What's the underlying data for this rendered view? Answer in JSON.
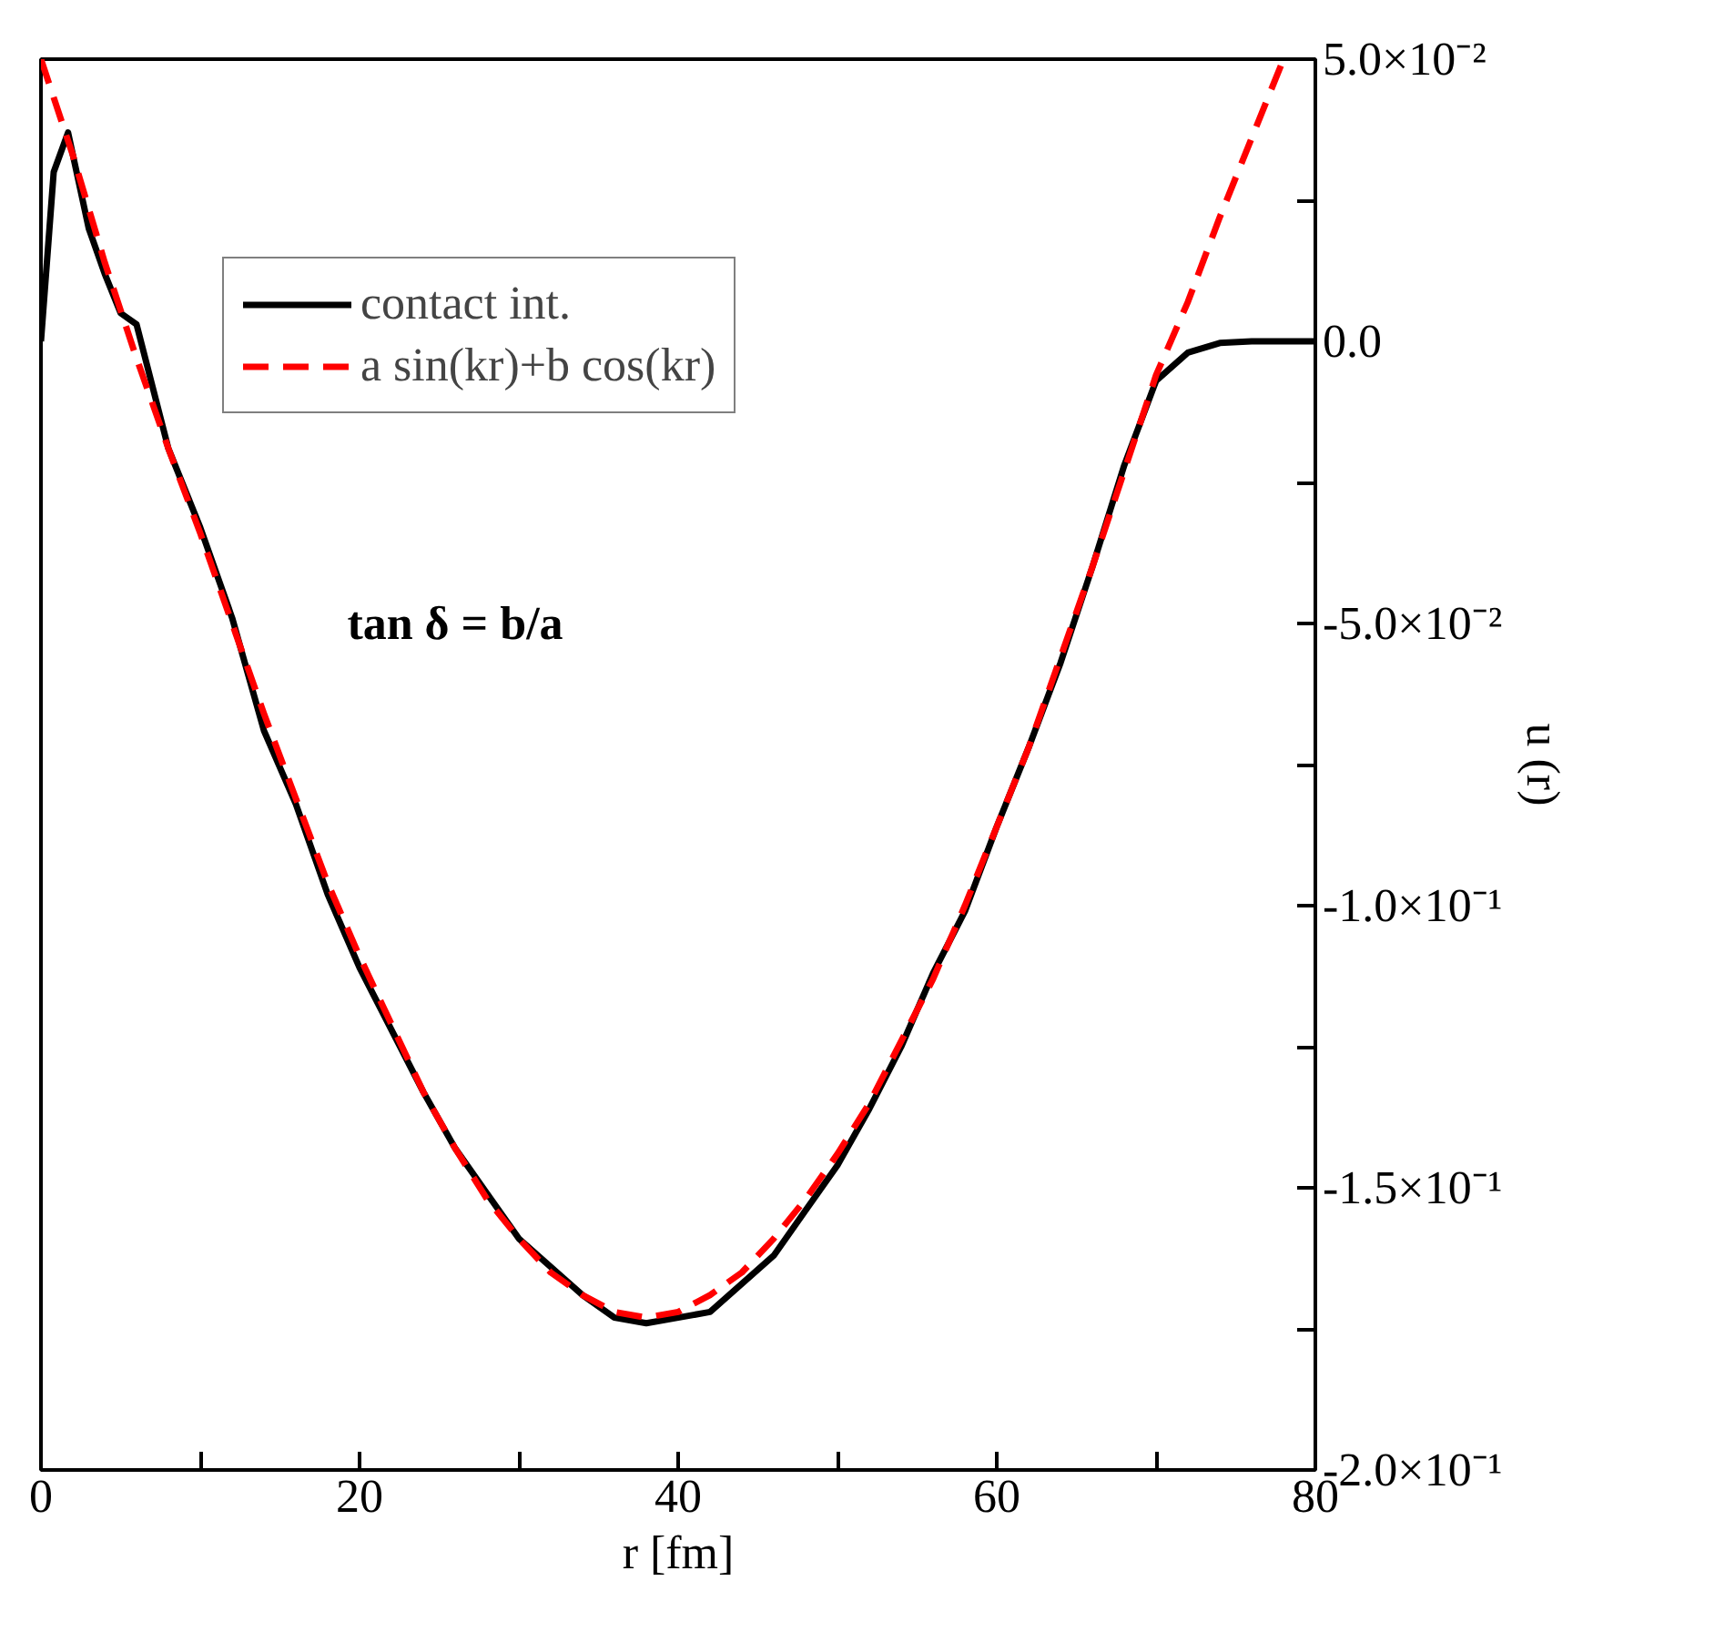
{
  "chart_data": {
    "type": "line",
    "xlabel": "r [fm]",
    "ylabel": "u (r)",
    "annotations": [
      "tan δ = b/a"
    ],
    "xlim": [
      0,
      80
    ],
    "ylim": [
      -0.2,
      0.05
    ],
    "xticks": [
      0,
      {
        "value": 10,
        "label": null
      },
      20,
      {
        "value": 30,
        "label": null
      },
      40,
      {
        "value": 50,
        "label": null
      },
      60,
      {
        "value": 70,
        "label": null
      },
      80
    ],
    "yticks": [
      {
        "value": 0.05,
        "label": "5.0×10⁻²"
      },
      {
        "value": 0.025,
        "label": null
      },
      {
        "value": 0,
        "label": "0.0"
      },
      {
        "value": -0.025,
        "label": null
      },
      {
        "value": -0.05,
        "label": "-5.0×10⁻²"
      },
      {
        "value": -0.075,
        "label": null
      },
      {
        "value": -0.1,
        "label": "-1.0×10⁻¹"
      },
      {
        "value": -0.125,
        "label": null
      },
      {
        "value": -0.15,
        "label": "-1.5×10⁻¹"
      },
      {
        "value": -0.175,
        "label": null
      },
      {
        "value": -0.2,
        "label": "-2.0×10⁻¹"
      }
    ],
    "legend": "top left",
    "grid": false,
    "series": [
      {
        "name": "contact int.",
        "color": "#000000",
        "line_style": "solid",
        "x": [
          0,
          0.8,
          1.7,
          3,
          4,
          5,
          6,
          7,
          8,
          10,
          12,
          14,
          16,
          18,
          20,
          22,
          24,
          26,
          28,
          30,
          32,
          34,
          36,
          38,
          40,
          42,
          44,
          46,
          48,
          50,
          52,
          54,
          56,
          58,
          60,
          62,
          64,
          66,
          68,
          70,
          72,
          74,
          76,
          80
        ],
        "values": [
          0,
          0.03,
          0.037,
          0.02,
          0.012,
          0.005,
          0.003,
          -0.008,
          -0.019,
          -0.033,
          -0.049,
          -0.069,
          -0.082,
          -0.098,
          -0.111,
          -0.122,
          -0.133,
          -0.143,
          -0.151,
          -0.159,
          -0.164,
          -0.169,
          -0.173,
          -0.174,
          -0.173,
          -0.172,
          -0.167,
          -0.162,
          -0.154,
          -0.146,
          -0.136,
          -0.125,
          -0.112,
          -0.101,
          -0.086,
          -0.072,
          -0.057,
          -0.04,
          -0.022,
          -0.007,
          -0.002,
          -0.0003,
          0,
          0
        ]
      },
      {
        "name": "a sin(kr)+b cos(kr)",
        "color": "#ff0000",
        "line_style": "dashed",
        "x": [
          0,
          2,
          4,
          6,
          8,
          10,
          12,
          14,
          16,
          18,
          20,
          22,
          24,
          26,
          28,
          30,
          32,
          34,
          36,
          38,
          40,
          42,
          44,
          46,
          48,
          50,
          52,
          54,
          56,
          58,
          60,
          62,
          64,
          66,
          68,
          70,
          72,
          74,
          76,
          78
        ],
        "values": [
          0.05,
          0.033,
          0.014,
          -0.003,
          -0.019,
          -0.034,
          -0.05,
          -0.066,
          -0.081,
          -0.096,
          -0.109,
          -0.121,
          -0.133,
          -0.143,
          -0.152,
          -0.159,
          -0.165,
          -0.169,
          -0.172,
          -0.173,
          -0.172,
          -0.169,
          -0.165,
          -0.159,
          -0.152,
          -0.144,
          -0.135,
          -0.124,
          -0.113,
          -0.1,
          -0.086,
          -0.072,
          -0.056,
          -0.04,
          -0.023,
          -0.006,
          0.007,
          0.022,
          0.036,
          0.05
        ]
      }
    ]
  }
}
